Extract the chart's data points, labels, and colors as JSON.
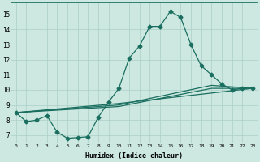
{
  "xlabel": "Humidex (Indice chaleur)",
  "ylabel": "",
  "bg_color": "#cce8e0",
  "grid_color": "#aacfc8",
  "line_color": "#1a6e60",
  "x_ticks": [
    0,
    1,
    2,
    3,
    4,
    5,
    6,
    7,
    8,
    9,
    10,
    11,
    12,
    13,
    14,
    15,
    16,
    17,
    18,
    19,
    20,
    21,
    22,
    23
  ],
  "y_ticks": [
    7,
    8,
    9,
    10,
    11,
    12,
    13,
    14,
    15
  ],
  "xlim": [
    -0.5,
    23.5
  ],
  "ylim": [
    6.5,
    15.8
  ],
  "series": [
    {
      "x": [
        0,
        1,
        2,
        3,
        4,
        5,
        6,
        7,
        8,
        9,
        10,
        11,
        12,
        13,
        14,
        15,
        16,
        17,
        18,
        19,
        20,
        21,
        22,
        23
      ],
      "y": [
        8.5,
        7.9,
        8.0,
        8.3,
        7.2,
        6.8,
        6.85,
        6.9,
        8.2,
        9.2,
        10.1,
        12.1,
        12.9,
        14.2,
        14.2,
        15.2,
        14.8,
        13.0,
        11.6,
        11.0,
        10.4,
        10.0,
        10.1,
        10.1
      ],
      "has_marker": true,
      "markersize": 2.5,
      "linewidth": 0.9
    },
    {
      "x": [
        0,
        10,
        23
      ],
      "y": [
        8.5,
        9.1,
        10.1
      ],
      "has_marker": false,
      "markersize": 0,
      "linewidth": 0.9
    },
    {
      "x": [
        0,
        10,
        19,
        23
      ],
      "y": [
        8.5,
        9.0,
        10.3,
        10.1
      ],
      "has_marker": false,
      "markersize": 0,
      "linewidth": 0.9
    },
    {
      "x": [
        0,
        10,
        19,
        23
      ],
      "y": [
        8.5,
        8.9,
        10.1,
        10.1
      ],
      "has_marker": false,
      "markersize": 0,
      "linewidth": 0.9
    }
  ]
}
